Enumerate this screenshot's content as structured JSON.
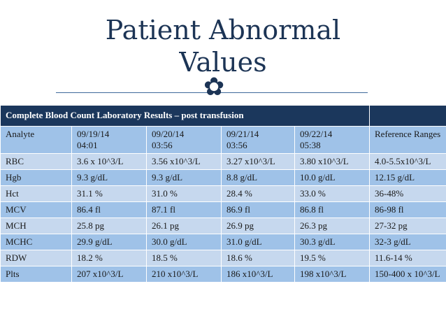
{
  "slide": {
    "title_line1": "Patient Abnormal",
    "title_line2": "Values",
    "ornament": "✿"
  },
  "table": {
    "caption": "Complete Blood Count Laboratory Results – post transfusion",
    "caption_extra": "",
    "columns": [
      "Analyte",
      "09/19/14\n04:01",
      "09/20/14\n03:56",
      "09/21/14\n03:56",
      "09/22/14\n05:38",
      "Reference Ranges"
    ],
    "rows": [
      [
        "RBC",
        "3.6 x 10^3/L",
        "3.56 x10^3/L",
        "3.27 x10^3/L",
        "3.80 x10^3/L",
        "4.0-5.5x10^3/L"
      ],
      [
        "Hgb",
        "9.3 g/dL",
        "9.3 g/dL",
        "8.8 g/dL",
        "10.0 g/dL",
        "12.15 g/dL"
      ],
      [
        "Hct",
        "31.1 %",
        "31.0 %",
        "28.4 %",
        "33.0 %",
        "36-48%"
      ],
      [
        "MCV",
        "86.4 fl",
        "87.1 fl",
        "86.9 fl",
        "86.8 fl",
        "86-98 fl"
      ],
      [
        "MCH",
        "25.8 pg",
        "26.1 pg",
        "26.9 pg",
        "26.3 pg",
        "27-32 pg"
      ],
      [
        "MCHC",
        "29.9 g/dL",
        "30.0 g/dL",
        "31.0 g/dL",
        "30.3 g/dL",
        "32-3 g/dL"
      ],
      [
        "RDW",
        "18.2 %",
        "18.5 %",
        "18.6 %",
        "19.5 %",
        "11.6-14 %"
      ],
      [
        "Plts",
        "207 x10^3/L",
        "210 x10^3/L",
        "186 x10^3/L",
        "198 x10^3/L",
        "150-400 x 10^3/L"
      ]
    ]
  },
  "colors": {
    "title": "#1c3455",
    "header_bg": "#1b375c",
    "row_light": "#c6d8ee",
    "row_dark": "#9fc2e8"
  }
}
